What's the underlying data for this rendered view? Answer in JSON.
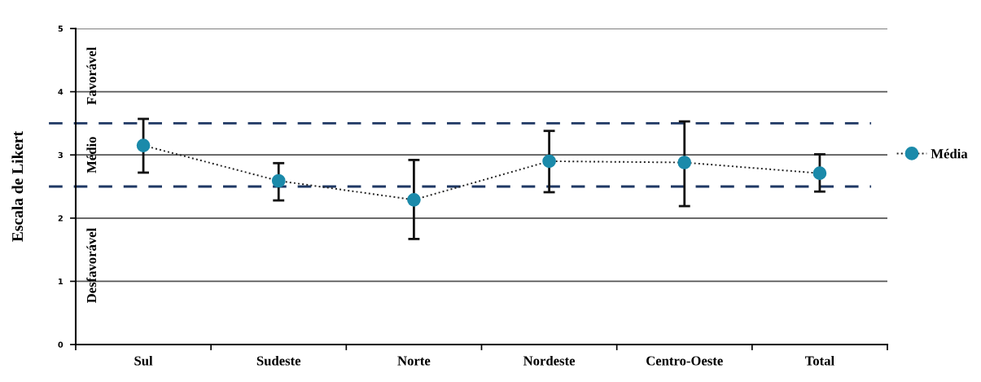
{
  "chart_data": {
    "type": "line",
    "ylabel": "Escala de Likert",
    "categories": [
      "Sul",
      "Sudeste",
      "Norte",
      "Nordeste",
      "Centro-Oeste",
      "Total"
    ],
    "series": [
      {
        "name": "Média",
        "color": "#1b8aaa",
        "values": [
          3.15,
          2.59,
          2.29,
          2.9,
          2.88,
          2.71
        ],
        "errors": [
          [
            2.72,
            3.57
          ],
          [
            2.28,
            2.87
          ],
          [
            1.67,
            2.92
          ],
          [
            2.41,
            3.38
          ],
          [
            2.19,
            3.53
          ],
          [
            2.42,
            3.01
          ]
        ]
      }
    ],
    "ylim": [
      0,
      5
    ],
    "yticks": [
      0,
      1,
      2,
      3,
      4,
      5
    ],
    "ref_lines": [
      {
        "axis": "y",
        "value": 3.5,
        "color": "#1f3864",
        "line_style": "dashed"
      },
      {
        "axis": "y",
        "value": 2.5,
        "color": "#1f3864",
        "line_style": "dashed"
      }
    ],
    "annotations": [
      "Favorável",
      "Médio",
      "Desfavorável"
    ],
    "grid": "y",
    "legend": "right",
    "marker": "circle",
    "line_style": "dotted"
  }
}
